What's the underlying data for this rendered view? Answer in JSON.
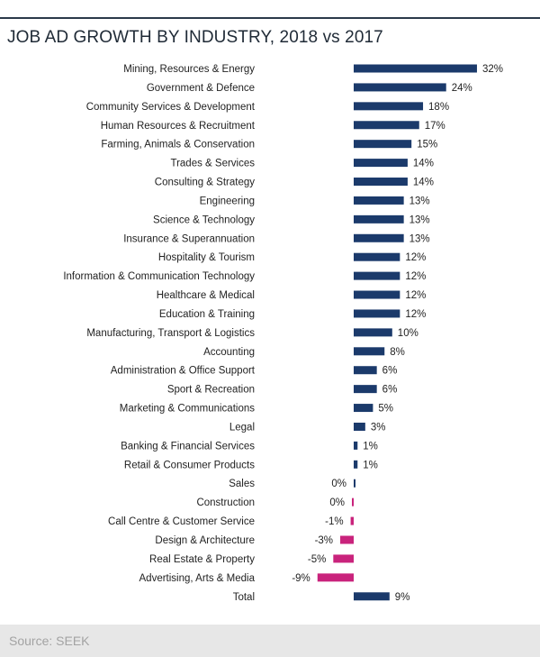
{
  "chart_data": {
    "type": "bar",
    "orientation": "horizontal",
    "title": "JOB AD GROWTH BY INDUSTRY, 2018 vs 2017",
    "source": "Source: SEEK",
    "value_suffix": "%",
    "colors": {
      "positive": "#1b3a6b",
      "negative": "#c9237c"
    },
    "categories": [
      "Mining, Resources & Energy",
      "Government & Defence",
      "Community Services & Development",
      "Human Resources & Recruitment",
      "Farming, Animals & Conservation",
      "Trades & Services",
      "Consulting & Strategy",
      "Engineering",
      "Science & Technology",
      "Insurance & Superannuation",
      "Hospitality & Tourism",
      "Information & Communication Technology",
      "Healthcare & Medical",
      "Education & Training",
      "Manufacturing, Transport & Logistics",
      "Accounting",
      "Administration & Office Support",
      "Sport & Recreation",
      "Marketing & Communications",
      "Legal",
      "Banking & Financial Services",
      "Retail & Consumer Products",
      "Sales",
      "Construction",
      "Call Centre & Customer Service",
      "Design & Architecture",
      "Real Estate & Property",
      "Advertising, Arts & Media",
      "Total"
    ],
    "values": [
      32,
      24,
      18,
      17,
      15,
      14,
      14,
      13,
      13,
      13,
      12,
      12,
      12,
      12,
      10,
      8,
      6,
      6,
      5,
      3,
      1,
      1,
      0,
      0,
      -1,
      -3,
      -5,
      -9,
      9
    ],
    "display_values": [
      32,
      24,
      18,
      17,
      15,
      14,
      14,
      13,
      13,
      13,
      12,
      12,
      12,
      12,
      10,
      8,
      6,
      6,
      5,
      3,
      1,
      1,
      0.3,
      -0.4,
      -0.8,
      -3.5,
      -5.3,
      -9.4,
      9.3
    ],
    "legend": "none",
    "grid": false
  }
}
